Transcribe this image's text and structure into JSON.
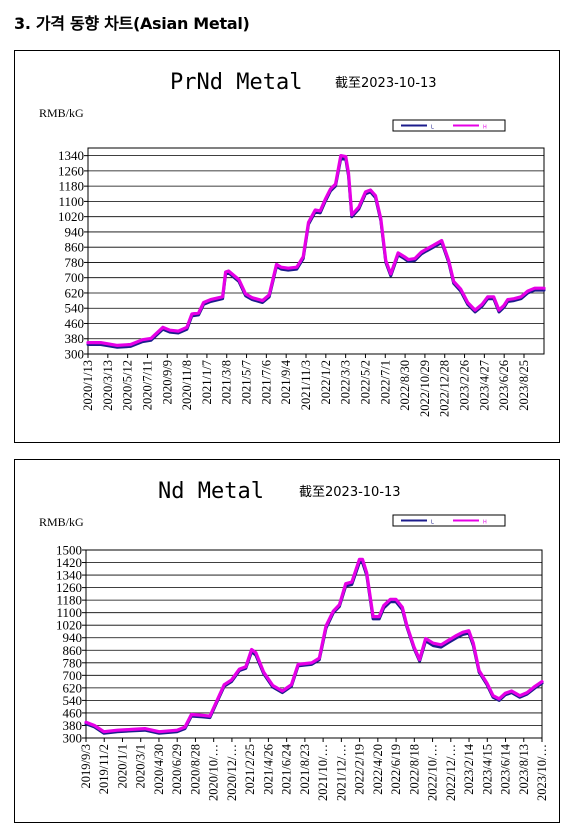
{
  "section_title": "3. 가격 동향 차트(Asian Metal)",
  "chart_data": [
    {
      "type": "line",
      "title": "PrNd Metal",
      "subtitle": "截至2023-10-13",
      "ylabel": "RMB/kG",
      "legend": {
        "placement": "top-right",
        "entries": [
          "L",
          "H"
        ]
      },
      "ylim": [
        300,
        1380
      ],
      "yticks": [
        300,
        380,
        460,
        540,
        620,
        700,
        780,
        860,
        940,
        1020,
        1100,
        1180,
        1260,
        1340
      ],
      "xlim": [
        "2020-01-13",
        "2023-10-13"
      ],
      "xtick_labels": [
        "2020/1/13",
        "2020/3/13",
        "2020/5/12",
        "2020/7/11",
        "2020/9/9",
        "2020/11/8",
        "2021/1/7",
        "2021/3/8",
        "2021/5/7",
        "2021/7/6",
        "2021/9/4",
        "2021/11/3",
        "2022/1/2",
        "2022/3/3",
        "2022/5/2",
        "2022/7/1",
        "2022/8/30",
        "2022/10/29",
        "2022/12/28",
        "2023/2/26",
        "2023/4/27",
        "2023/6/26",
        "2023/8/25"
      ],
      "grid": true,
      "series": [
        {
          "name": "L",
          "color": "#1c1c8c",
          "x": [
            "2020-01-13",
            "2020-02-20",
            "2020-04-10",
            "2020-05-20",
            "2020-06-25",
            "2020-07-20",
            "2020-08-25",
            "2020-09-15",
            "2020-10-10",
            "2020-11-05",
            "2020-11-20",
            "2020-12-10",
            "2020-12-25",
            "2021-01-15",
            "2021-02-20",
            "2021-03-01",
            "2021-03-10",
            "2021-04-10",
            "2021-04-30",
            "2021-05-20",
            "2021-06-20",
            "2021-07-10",
            "2021-08-01",
            "2021-08-15",
            "2021-09-05",
            "2021-10-01",
            "2021-10-20",
            "2021-11-05",
            "2021-11-25",
            "2021-12-10",
            "2021-12-25",
            "2022-01-10",
            "2022-01-25",
            "2022-02-10",
            "2022-02-25",
            "2022-03-05",
            "2022-03-15",
            "2022-04-05",
            "2022-04-25",
            "2022-05-10",
            "2022-05-25",
            "2022-06-10",
            "2022-06-25",
            "2022-07-10",
            "2022-08-01",
            "2022-08-20",
            "2022-09-01",
            "2022-09-20",
            "2022-10-10",
            "2022-10-25",
            "2022-11-15",
            "2022-12-10",
            "2022-12-31",
            "2023-01-15",
            "2023-02-05",
            "2023-02-26",
            "2023-03-20",
            "2023-04-10",
            "2023-04-27",
            "2023-05-15",
            "2023-05-31",
            "2023-06-15",
            "2023-06-26",
            "2023-07-15",
            "2023-08-05",
            "2023-08-25",
            "2023-09-15",
            "2023-10-13"
          ],
          "y": [
            350,
            350,
            335,
            340,
            365,
            372,
            430,
            415,
            410,
            430,
            500,
            505,
            560,
            575,
            590,
            720,
            725,
            680,
            605,
            585,
            570,
            600,
            760,
            745,
            740,
            745,
            800,
            980,
            1045,
            1040,
            1100,
            1155,
            1180,
            1325,
            1320,
            1235,
            1020,
            1060,
            1140,
            1150,
            1120,
            1000,
            780,
            710,
            820,
            800,
            785,
            790,
            825,
            840,
            860,
            885,
            780,
            670,
            630,
            560,
            520,
            550,
            590,
            590,
            520,
            545,
            575,
            580,
            590,
            620,
            635,
            635
          ]
        },
        {
          "name": "H",
          "color": "#e600e6",
          "x": [
            "2020-01-13",
            "2020-02-20",
            "2020-04-10",
            "2020-05-20",
            "2020-06-25",
            "2020-07-20",
            "2020-08-25",
            "2020-09-15",
            "2020-10-10",
            "2020-11-05",
            "2020-11-20",
            "2020-12-10",
            "2020-12-25",
            "2021-01-15",
            "2021-02-20",
            "2021-03-01",
            "2021-03-10",
            "2021-04-10",
            "2021-04-30",
            "2021-05-20",
            "2021-06-20",
            "2021-07-10",
            "2021-08-01",
            "2021-08-15",
            "2021-09-05",
            "2021-10-01",
            "2021-10-20",
            "2021-11-05",
            "2021-11-25",
            "2021-12-10",
            "2021-12-25",
            "2022-01-10",
            "2022-01-25",
            "2022-02-10",
            "2022-02-25",
            "2022-03-05",
            "2022-03-15",
            "2022-04-05",
            "2022-04-25",
            "2022-05-10",
            "2022-05-25",
            "2022-06-10",
            "2022-06-25",
            "2022-07-10",
            "2022-08-01",
            "2022-08-20",
            "2022-09-01",
            "2022-09-20",
            "2022-10-10",
            "2022-10-25",
            "2022-11-15",
            "2022-12-10",
            "2022-12-31",
            "2023-01-15",
            "2023-02-05",
            "2023-02-26",
            "2023-03-20",
            "2023-04-10",
            "2023-04-27",
            "2023-05-15",
            "2023-05-31",
            "2023-06-15",
            "2023-06-26",
            "2023-07-15",
            "2023-08-05",
            "2023-08-25",
            "2023-09-15",
            "2023-10-13"
          ],
          "y": [
            360,
            360,
            345,
            350,
            375,
            382,
            440,
            425,
            420,
            440,
            510,
            515,
            570,
            585,
            600,
            730,
            735,
            690,
            615,
            595,
            580,
            610,
            770,
            755,
            750,
            755,
            810,
            990,
            1055,
            1050,
            1110,
            1165,
            1190,
            1340,
            1335,
            1250,
            1030,
            1070,
            1150,
            1160,
            1130,
            1010,
            790,
            720,
            830,
            810,
            795,
            800,
            835,
            850,
            870,
            895,
            790,
            680,
            640,
            570,
            530,
            560,
            600,
            600,
            530,
            555,
            585,
            590,
            600,
            630,
            645,
            645
          ]
        }
      ]
    },
    {
      "type": "line",
      "title": "Nd Metal",
      "subtitle": "截至2023-10-13",
      "ylabel": "RMB/kG",
      "legend": {
        "placement": "top-right",
        "entries": [
          "L",
          "H"
        ]
      },
      "ylim": [
        300,
        1500
      ],
      "yticks": [
        300,
        380,
        460,
        540,
        620,
        700,
        780,
        860,
        940,
        1020,
        1100,
        1180,
        1260,
        1340,
        1420,
        1500
      ],
      "xlim": [
        "2019-09-03",
        "2023-10-13"
      ],
      "xtick_labels": [
        "2019/9/3",
        "2019/11/2",
        "2020/1/1",
        "2020/3/1",
        "2020/4/30",
        "2020/6/29",
        "2020/8/28",
        "2020/10/…",
        "2020/12/…",
        "2021/2/25",
        "2021/4/26",
        "2021/6/24",
        "2021/8/23",
        "2021/10/…",
        "2021/12/…",
        "2022/2/19",
        "2022/4/20",
        "2022/6/19",
        "2022/8/18",
        "2022/10/…",
        "2022/12/…",
        "2023/2/14",
        "2023/4/15",
        "2023/6/14",
        "2023/8/13",
        "2023/10/…"
      ],
      "grid": true,
      "series": [
        {
          "name": "L",
          "color": "#1c1c8c",
          "x": [
            "2019-09-03",
            "2019-10-01",
            "2019-11-01",
            "2019-12-15",
            "2020-02-01",
            "2020-03-15",
            "2020-05-01",
            "2020-06-29",
            "2020-07-25",
            "2020-08-15",
            "2020-09-20",
            "2020-10-15",
            "2020-11-05",
            "2020-12-01",
            "2020-12-25",
            "2021-01-20",
            "2021-02-10",
            "2021-03-01",
            "2021-03-15",
            "2021-04-10",
            "2021-05-10",
            "2021-06-10",
            "2021-07-10",
            "2021-08-01",
            "2021-08-23",
            "2021-09-15",
            "2021-10-10",
            "2021-11-01",
            "2021-11-25",
            "2021-12-15",
            "2022-01-05",
            "2022-01-25",
            "2022-02-19",
            "2022-03-01",
            "2022-03-15",
            "2022-04-05",
            "2022-04-25",
            "2022-05-10",
            "2022-06-01",
            "2022-06-19",
            "2022-07-10",
            "2022-07-25",
            "2022-08-18",
            "2022-09-05",
            "2022-09-25",
            "2022-10-20",
            "2022-11-15",
            "2022-12-10",
            "2023-01-05",
            "2023-01-25",
            "2023-02-14",
            "2023-03-01",
            "2023-03-20",
            "2023-04-15",
            "2023-05-05",
            "2023-05-25",
            "2023-06-14",
            "2023-07-05",
            "2023-08-01",
            "2023-08-25",
            "2023-09-20",
            "2023-10-13"
          ],
          "y": [
            390,
            370,
            330,
            340,
            345,
            350,
            330,
            340,
            360,
            440,
            435,
            430,
            520,
            630,
            660,
            730,
            745,
            850,
            830,
            710,
            625,
            590,
            630,
            760,
            765,
            770,
            800,
            1000,
            1100,
            1140,
            1270,
            1280,
            1420,
            1420,
            1340,
            1060,
            1060,
            1130,
            1170,
            1170,
            1120,
            1010,
            870,
            790,
            920,
            890,
            880,
            910,
            940,
            960,
            970,
            890,
            720,
            640,
            560,
            540,
            575,
            590,
            560,
            580,
            620,
            650
          ]
        },
        {
          "name": "H",
          "color": "#e600e6",
          "x": [
            "2019-09-03",
            "2019-10-01",
            "2019-11-01",
            "2019-12-15",
            "2020-02-01",
            "2020-03-15",
            "2020-05-01",
            "2020-06-29",
            "2020-07-25",
            "2020-08-15",
            "2020-09-20",
            "2020-10-15",
            "2020-11-05",
            "2020-12-01",
            "2020-12-25",
            "2021-01-20",
            "2021-02-10",
            "2021-03-01",
            "2021-03-15",
            "2021-04-10",
            "2021-05-10",
            "2021-06-10",
            "2021-07-10",
            "2021-08-01",
            "2021-08-23",
            "2021-09-15",
            "2021-10-10",
            "2021-11-01",
            "2021-11-25",
            "2021-12-15",
            "2022-01-05",
            "2022-01-25",
            "2022-02-19",
            "2022-03-01",
            "2022-03-15",
            "2022-04-05",
            "2022-04-25",
            "2022-05-10",
            "2022-06-01",
            "2022-06-19",
            "2022-07-10",
            "2022-07-25",
            "2022-08-18",
            "2022-09-05",
            "2022-09-25",
            "2022-10-20",
            "2022-11-15",
            "2022-12-10",
            "2023-01-05",
            "2023-01-25",
            "2023-02-14",
            "2023-03-01",
            "2023-03-20",
            "2023-04-15",
            "2023-05-05",
            "2023-05-25",
            "2023-06-14",
            "2023-07-05",
            "2023-08-01",
            "2023-08-25",
            "2023-09-20",
            "2023-10-13"
          ],
          "y": [
            400,
            380,
            340,
            350,
            355,
            360,
            340,
            350,
            370,
            450,
            445,
            440,
            530,
            640,
            670,
            740,
            755,
            865,
            845,
            720,
            635,
            600,
            640,
            770,
            775,
            780,
            810,
            1015,
            1110,
            1150,
            1285,
            1295,
            1440,
            1440,
            1355,
            1075,
            1075,
            1145,
            1185,
            1185,
            1135,
            1020,
            880,
            800,
            935,
            905,
            895,
            925,
            955,
            975,
            985,
            905,
            730,
            650,
            570,
            550,
            585,
            600,
            570,
            590,
            630,
            660
          ]
        }
      ]
    }
  ]
}
